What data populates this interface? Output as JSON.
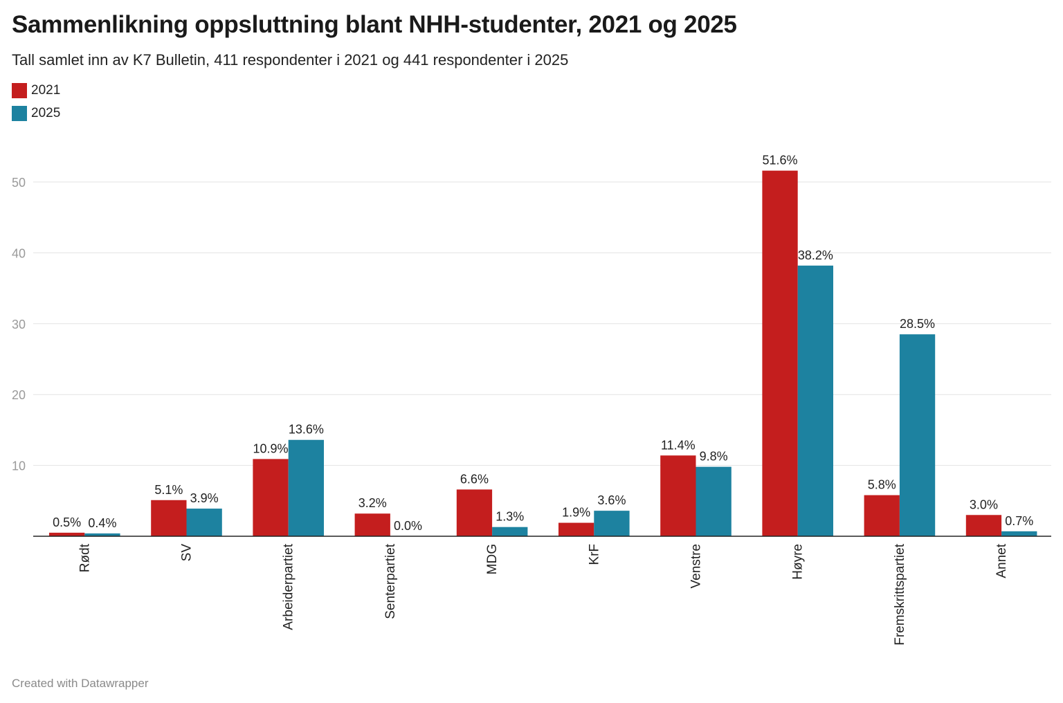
{
  "title": "Sammenlikning oppsluttning blant NHH-studenter, 2021 og 2025",
  "subtitle": "Tall samlet inn av K7 Bulletin, 411 respondenter i 2021 og 441 respondenter i 2025",
  "footer": "Created with Datawrapper",
  "colors": {
    "2021": "#c41e1e",
    "2025": "#1d82a0"
  },
  "chart_data": {
    "type": "bar",
    "categories": [
      "Rødt",
      "SV",
      "Arbeiderpartiet",
      "Senterpartiet",
      "MDG",
      "KrF",
      "Venstre",
      "Høyre",
      "Fremskrittspartiet",
      "Annet"
    ],
    "series": [
      {
        "name": "2021",
        "values": [
          0.5,
          5.1,
          10.9,
          3.2,
          6.6,
          1.9,
          11.4,
          51.6,
          5.8,
          3.0
        ],
        "labels": [
          "0.5%",
          "5.1%",
          "10.9%",
          "3.2%",
          "6.6%",
          "1.9%",
          "11.4%",
          "51.6%",
          "5.8%",
          "3.0%"
        ]
      },
      {
        "name": "2025",
        "values": [
          0.4,
          3.9,
          13.6,
          0.0,
          1.3,
          3.6,
          9.8,
          38.2,
          28.5,
          0.7
        ],
        "labels": [
          "0.4%",
          "3.9%",
          "13.6%",
          "0.0%",
          "1.3%",
          "3.6%",
          "9.8%",
          "38.2%",
          "28.5%",
          "0.7%"
        ]
      }
    ],
    "ylim": [
      0,
      55
    ],
    "yticks": [
      10,
      20,
      30,
      40,
      50
    ],
    "ytick_labels": [
      "10",
      "20",
      "30",
      "40",
      "50"
    ],
    "grid": true,
    "legend_position": "top-left"
  }
}
